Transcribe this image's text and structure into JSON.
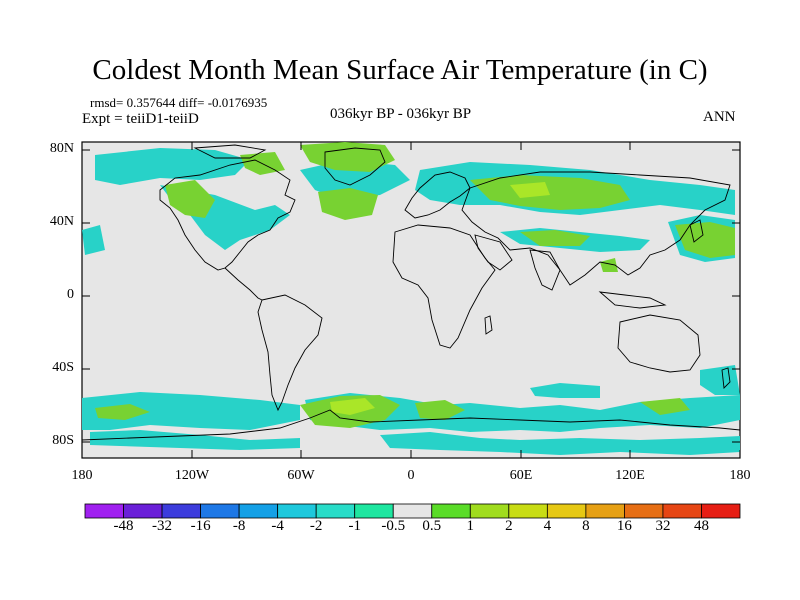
{
  "title": "Coldest Month Mean Surface Air Temperature (in C)",
  "stats": "rmsd= 0.357644 diff= -0.0176935",
  "experiment": "Expt = teiiD1-teiiD",
  "period": "036kyr BP - 036kyr BP",
  "season": "ANN",
  "map": {
    "projection": "cylindrical-equidistant",
    "lon_range": [
      -180,
      180
    ],
    "lat_range": [
      -90,
      90
    ],
    "x_ticks": [
      "180",
      "120W",
      "60W",
      "0",
      "60E",
      "120E",
      "180"
    ],
    "y_ticks": [
      "80N",
      "40N",
      "0",
      "40S",
      "80S"
    ],
    "background_color": "#e6e6e6"
  },
  "colorbar": {
    "labels": [
      "-48",
      "-32",
      "-16",
      "-8",
      "-4",
      "-2",
      "-1",
      "-0.5",
      "0.5",
      "1",
      "2",
      "4",
      "8",
      "16",
      "32",
      "48"
    ],
    "colors": [
      "#a020f0",
      "#6a1fd8",
      "#3c3cdc",
      "#1e78e6",
      "#14a0e6",
      "#1ec8dc",
      "#28dcc8",
      "#1ee6a0",
      "#e6e6e6",
      "#5adc28",
      "#a0dc1e",
      "#c8dc14",
      "#e6c814",
      "#e6a014",
      "#e66e14",
      "#e64614",
      "#e61e14"
    ]
  },
  "colors": {
    "cool_anomaly": "#28d2c8",
    "warm_anomaly": "#78d232",
    "warm_strong": "#aae628",
    "coast": "#000000"
  }
}
